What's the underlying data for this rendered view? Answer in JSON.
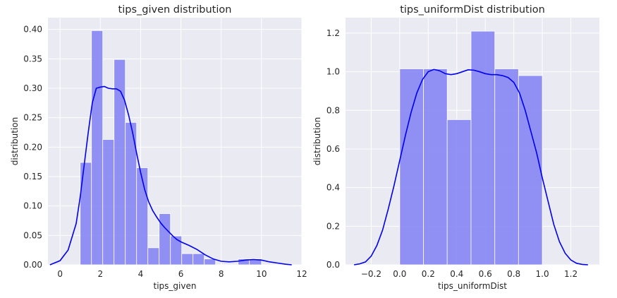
{
  "chart_data": [
    {
      "type": "bar",
      "title": "tips_given distribution",
      "xlabel": "tips_given",
      "ylabel": "distribution",
      "xlim": [
        -0.6,
        12.0
      ],
      "ylim": [
        0,
        0.42
      ],
      "xticks": [
        0,
        2,
        4,
        6,
        8,
        10,
        12
      ],
      "yticks": [
        0.0,
        0.05,
        0.1,
        0.15,
        0.2,
        0.25,
        0.3,
        0.35,
        0.4
      ],
      "ytick_labels": [
        "0.00",
        "0.05",
        "0.10",
        "0.15",
        "0.20",
        "0.25",
        "0.30",
        "0.35",
        "0.40"
      ],
      "xtick_labels": [
        "0",
        "2",
        "4",
        "6",
        "8",
        "10",
        "12"
      ],
      "grid": true,
      "bins": [
        {
          "x0": 1.0,
          "x1": 1.56,
          "value": 0.174
        },
        {
          "x0": 1.56,
          "x1": 2.12,
          "value": 0.398
        },
        {
          "x0": 2.12,
          "x1": 2.68,
          "value": 0.213
        },
        {
          "x0": 2.68,
          "x1": 3.24,
          "value": 0.349
        },
        {
          "x0": 3.24,
          "x1": 3.8,
          "value": 0.242
        },
        {
          "x0": 3.8,
          "x1": 4.36,
          "value": 0.165
        },
        {
          "x0": 4.36,
          "x1": 4.92,
          "value": 0.029
        },
        {
          "x0": 4.92,
          "x1": 5.48,
          "value": 0.087
        },
        {
          "x0": 5.48,
          "x1": 6.04,
          "value": 0.049
        },
        {
          "x0": 6.04,
          "x1": 6.6,
          "value": 0.019
        },
        {
          "x0": 6.6,
          "x1": 7.16,
          "value": 0.019
        },
        {
          "x0": 7.16,
          "x1": 7.72,
          "value": 0.01
        },
        {
          "x0": 7.72,
          "x1": 8.28,
          "value": 0.0
        },
        {
          "x0": 8.28,
          "x1": 8.84,
          "value": 0.0
        },
        {
          "x0": 8.84,
          "x1": 9.4,
          "value": 0.01
        },
        {
          "x0": 9.4,
          "x1": 10.0,
          "value": 0.01
        }
      ],
      "kde": {
        "x": [
          -0.5,
          0.0,
          0.4,
          0.8,
          1.0,
          1.2,
          1.4,
          1.6,
          1.8,
          2.0,
          2.2,
          2.4,
          2.6,
          2.8,
          3.0,
          3.2,
          3.4,
          3.6,
          3.8,
          4.0,
          4.2,
          4.4,
          4.6,
          4.8,
          5.0,
          5.2,
          5.4,
          5.6,
          5.8,
          6.0,
          6.4,
          6.8,
          7.2,
          7.6,
          8.0,
          8.4,
          8.8,
          9.2,
          9.6,
          10.0,
          10.4,
          10.8,
          11.2,
          11.5
        ],
        "y": [
          0.0,
          0.007,
          0.025,
          0.07,
          0.115,
          0.17,
          0.225,
          0.275,
          0.3,
          0.302,
          0.303,
          0.3,
          0.299,
          0.299,
          0.295,
          0.28,
          0.255,
          0.225,
          0.19,
          0.157,
          0.128,
          0.107,
          0.092,
          0.081,
          0.071,
          0.063,
          0.056,
          0.049,
          0.043,
          0.039,
          0.033,
          0.026,
          0.017,
          0.01,
          0.006,
          0.005,
          0.006,
          0.008,
          0.009,
          0.008,
          0.005,
          0.003,
          0.001,
          0.0
        ]
      }
    },
    {
      "type": "bar",
      "title": "tips_uniformDist distribution",
      "xlabel": "tips_uniformDist",
      "ylabel": "distribution",
      "xlim": [
        -0.38,
        1.4
      ],
      "ylim": [
        0,
        1.28
      ],
      "xticks": [
        -0.2,
        0.0,
        0.2,
        0.4,
        0.6,
        0.8,
        1.0,
        1.2
      ],
      "xtick_labels": [
        "−0.2",
        "0.0",
        "0.2",
        "0.4",
        "0.6",
        "0.8",
        "1.0",
        "1.2"
      ],
      "yticks": [
        0.0,
        0.2,
        0.4,
        0.6,
        0.8,
        1.0,
        1.2
      ],
      "ytick_labels": [
        "0.0",
        "0.2",
        "0.4",
        "0.6",
        "0.8",
        "1.0",
        "1.2"
      ],
      "grid": true,
      "bins": [
        {
          "x0": 0.0,
          "x1": 0.167,
          "value": 1.015
        },
        {
          "x0": 0.167,
          "x1": 0.333,
          "value": 1.015
        },
        {
          "x0": 0.333,
          "x1": 0.5,
          "value": 0.752
        },
        {
          "x0": 0.5,
          "x1": 0.667,
          "value": 1.21
        },
        {
          "x0": 0.667,
          "x1": 0.833,
          "value": 1.015
        },
        {
          "x0": 0.833,
          "x1": 1.0,
          "value": 0.98
        }
      ],
      "kde": {
        "x": [
          -0.32,
          -0.28,
          -0.24,
          -0.2,
          -0.16,
          -0.12,
          -0.08,
          -0.04,
          0.0,
          0.04,
          0.08,
          0.12,
          0.16,
          0.2,
          0.24,
          0.28,
          0.32,
          0.36,
          0.4,
          0.44,
          0.48,
          0.52,
          0.56,
          0.6,
          0.64,
          0.68,
          0.72,
          0.76,
          0.8,
          0.84,
          0.88,
          0.92,
          0.96,
          1.0,
          1.04,
          1.08,
          1.12,
          1.16,
          1.2,
          1.24,
          1.28,
          1.32
        ],
        "y": [
          0.0,
          0.005,
          0.015,
          0.045,
          0.1,
          0.18,
          0.29,
          0.41,
          0.54,
          0.67,
          0.79,
          0.89,
          0.96,
          1.0,
          1.012,
          1.005,
          0.99,
          0.985,
          0.99,
          1.0,
          1.01,
          1.008,
          1.0,
          0.99,
          0.985,
          0.985,
          0.98,
          0.97,
          0.945,
          0.89,
          0.8,
          0.69,
          0.58,
          0.45,
          0.33,
          0.21,
          0.12,
          0.06,
          0.025,
          0.008,
          0.002,
          0.0
        ]
      }
    }
  ]
}
